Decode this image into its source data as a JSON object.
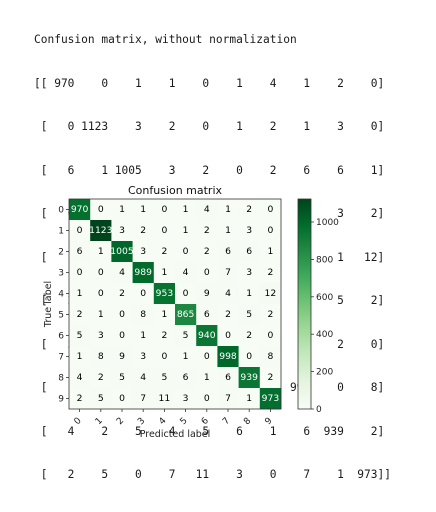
{
  "console": {
    "title": "Confusion matrix, without normalization",
    "lines": [
      "[[ 970    0    1    1    0    1    4    1    2    0]",
      " [   0 1123    3    2    0    1    2    1    3    0]",
      " [   6    1 1005    3    2    0    2    6    6    1]",
      " [   0    0    4  989    1    4    0    7    3    2]",
      " [   1    0    2    0  953    0    9    4    1   12]",
      " [   2    1    0    8    1  865    6    2    5    2]",
      " [   5    3    0    1    2    5  940    0    2    0]",
      " [   1    8    9    3    0    1    0  998    0    8]",
      " [   4    2    5    4    5    6    1    6  939    2]",
      " [   2    5    0    7   11    3    0    7    1  973]]"
    ]
  },
  "chart_data": {
    "type": "heatmap",
    "title": "Confusion matrix",
    "xlabel": "Predicted label",
    "ylabel": "True label",
    "x_categories": [
      "0",
      "1",
      "2",
      "3",
      "4",
      "5",
      "6",
      "7",
      "8",
      "9"
    ],
    "y_categories": [
      "0",
      "1",
      "2",
      "3",
      "4",
      "5",
      "6",
      "7",
      "8",
      "9"
    ],
    "values": [
      [
        970,
        0,
        1,
        1,
        0,
        1,
        4,
        1,
        2,
        0
      ],
      [
        0,
        1123,
        3,
        2,
        0,
        1,
        2,
        1,
        3,
        0
      ],
      [
        6,
        1,
        1005,
        3,
        2,
        0,
        2,
        6,
        6,
        1
      ],
      [
        0,
        0,
        4,
        989,
        1,
        4,
        0,
        7,
        3,
        2
      ],
      [
        1,
        0,
        2,
        0,
        953,
        0,
        9,
        4,
        1,
        12
      ],
      [
        2,
        1,
        0,
        8,
        1,
        865,
        6,
        2,
        5,
        2
      ],
      [
        5,
        3,
        0,
        1,
        2,
        5,
        940,
        0,
        2,
        0
      ],
      [
        1,
        8,
        9,
        3,
        0,
        1,
        0,
        998,
        0,
        8
      ],
      [
        4,
        2,
        5,
        4,
        5,
        6,
        1,
        6,
        939,
        2
      ],
      [
        2,
        5,
        0,
        7,
        11,
        3,
        0,
        7,
        1,
        973
      ]
    ],
    "colorbar": {
      "min": 0,
      "max": 1123,
      "ticks": [
        0,
        200,
        400,
        600,
        800,
        1000
      ],
      "colormap": "Greens"
    },
    "grid": false
  }
}
